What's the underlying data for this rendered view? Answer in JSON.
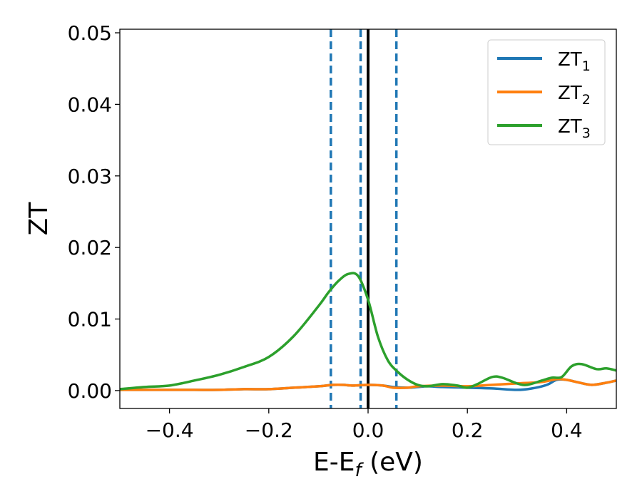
{
  "chart_data": {
    "type": "line",
    "xlabel": "E-E",
    "xlabel_sub": "f",
    "xlabel_unit": " (eV)",
    "ylabel": "ZT",
    "xlim": [
      -0.5,
      0.5
    ],
    "ylim": [
      -0.0025,
      0.0505
    ],
    "xticks": [
      -0.4,
      -0.2,
      0.0,
      0.2,
      0.4
    ],
    "xtick_labels": [
      "−0.4",
      "−0.2",
      "0.0",
      "0.2",
      "0.4"
    ],
    "yticks": [
      0.0,
      0.01,
      0.02,
      0.03,
      0.04,
      0.05
    ],
    "ytick_labels": [
      "0.00",
      "0.01",
      "0.02",
      "0.03",
      "0.04",
      "0.05"
    ],
    "grid": false,
    "legend_position": "top-right",
    "series": [
      {
        "name": "ZT",
        "name_sub": "1",
        "color": "#1f77b4",
        "x": [
          -0.5,
          -0.45,
          -0.4,
          -0.35,
          -0.3,
          -0.25,
          -0.2,
          -0.15,
          -0.1,
          -0.07,
          -0.05,
          -0.03,
          0.0,
          0.03,
          0.05,
          0.08,
          0.1,
          0.12,
          0.15,
          0.2,
          0.25,
          0.3,
          0.33,
          0.36,
          0.38,
          0.4,
          0.42,
          0.45,
          0.48,
          0.5
        ],
        "y": [
          0.0001,
          0.0001,
          0.0001,
          0.0001,
          0.0001,
          0.0002,
          0.0002,
          0.0004,
          0.0006,
          0.0008,
          0.0008,
          0.0007,
          0.0008,
          0.0007,
          0.0005,
          0.0004,
          0.0005,
          0.0006,
          0.0005,
          0.0004,
          0.0003,
          0.0001,
          0.0003,
          0.0008,
          0.0015,
          0.0015,
          0.0012,
          0.0008,
          0.0011,
          0.0014
        ]
      },
      {
        "name": "ZT",
        "name_sub": "2",
        "color": "#ff7f0e",
        "x": [
          -0.5,
          -0.45,
          -0.4,
          -0.35,
          -0.3,
          -0.25,
          -0.2,
          -0.15,
          -0.1,
          -0.07,
          -0.05,
          -0.03,
          0.0,
          0.03,
          0.05,
          0.08,
          0.1,
          0.15,
          0.2,
          0.25,
          0.3,
          0.35,
          0.38,
          0.4,
          0.42,
          0.45,
          0.48,
          0.5
        ],
        "y": [
          0.0001,
          0.0001,
          0.0001,
          0.0001,
          0.0001,
          0.0002,
          0.0002,
          0.0004,
          0.0006,
          0.0008,
          0.0008,
          0.0007,
          0.0008,
          0.0007,
          0.0004,
          0.0004,
          0.0006,
          0.0007,
          0.0006,
          0.0008,
          0.001,
          0.0012,
          0.0016,
          0.0015,
          0.0012,
          0.0008,
          0.0011,
          0.0014
        ]
      },
      {
        "name": "ZT",
        "name_sub": "3",
        "color": "#2ca02c",
        "x": [
          -0.5,
          -0.45,
          -0.4,
          -0.35,
          -0.3,
          -0.25,
          -0.2,
          -0.15,
          -0.1,
          -0.08,
          -0.06,
          -0.04,
          -0.02,
          0.0,
          0.02,
          0.04,
          0.06,
          0.08,
          0.1,
          0.12,
          0.15,
          0.18,
          0.2,
          0.22,
          0.25,
          0.27,
          0.3,
          0.32,
          0.35,
          0.37,
          0.39,
          0.41,
          0.43,
          0.46,
          0.48,
          0.5
        ],
        "y": [
          0.0002,
          0.0005,
          0.0007,
          0.0014,
          0.0022,
          0.0033,
          0.0047,
          0.0076,
          0.0118,
          0.0137,
          0.0153,
          0.0163,
          0.016,
          0.0127,
          0.0075,
          0.0042,
          0.0026,
          0.0015,
          0.0008,
          0.0006,
          0.0009,
          0.0007,
          0.0004,
          0.0009,
          0.0019,
          0.0018,
          0.001,
          0.0008,
          0.0014,
          0.0018,
          0.0019,
          0.0034,
          0.0037,
          0.003,
          0.0031,
          0.0028
        ]
      }
    ],
    "vlines": [
      {
        "x": -0.075,
        "style": "dashed",
        "color": "#1f77b4"
      },
      {
        "x": -0.015,
        "style": "dashed",
        "color": "#1f77b4"
      },
      {
        "x": 0.0,
        "style": "solid",
        "color": "#000000"
      },
      {
        "x": 0.057,
        "style": "dashed",
        "color": "#1f77b4"
      }
    ]
  }
}
